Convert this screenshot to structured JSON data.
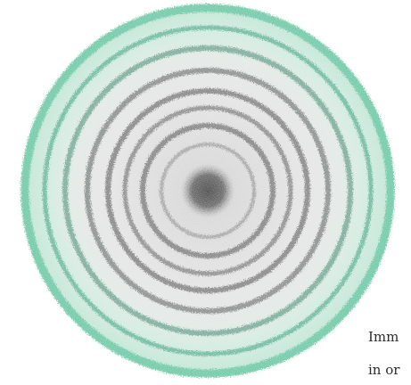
{
  "figure": {
    "icon": "concentric-rings-disc",
    "colors": {
      "outer_rim": "#3fb58c",
      "outer_rim_light": "#bfe8d6",
      "inner_fill": "#d9d9d9",
      "ring_dark": "#6a6a6a",
      "core": "#4a4a4a"
    },
    "ring_count": 6
  },
  "caption": {
    "line1": "Imm",
    "line2": "in or"
  }
}
